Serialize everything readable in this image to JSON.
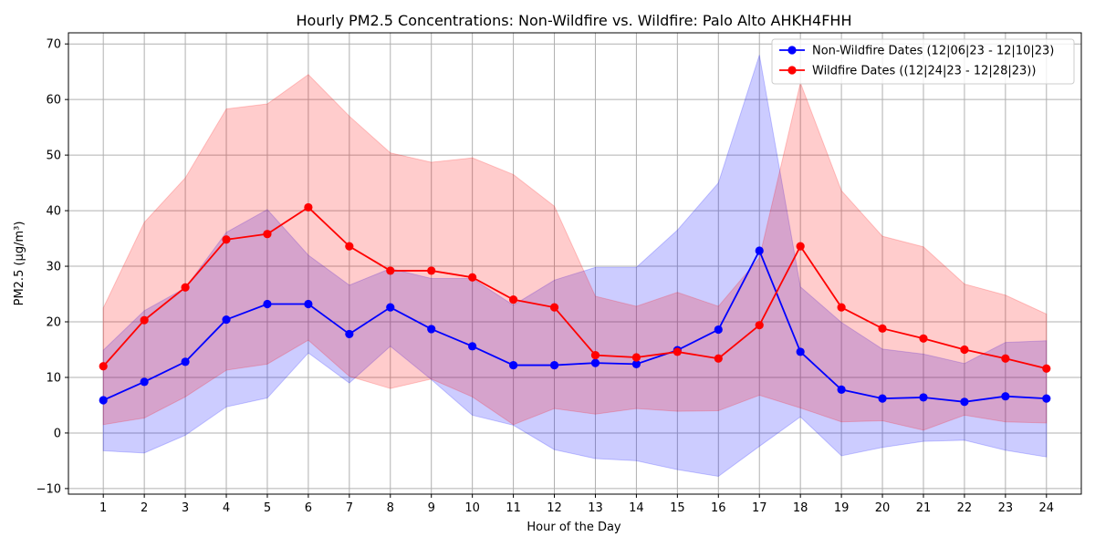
{
  "chart_data": {
    "type": "line",
    "title": "Hourly PM2.5 Concentrations: Non-Wildfire vs. Wildfire: Palo Alto AHKH4FHH",
    "xlabel": "Hour of the Day",
    "ylabel": "PM2.5 (µg/m³)",
    "x": [
      1,
      2,
      3,
      4,
      5,
      6,
      7,
      8,
      9,
      10,
      11,
      12,
      13,
      14,
      15,
      16,
      17,
      18,
      19,
      20,
      21,
      22,
      23,
      24
    ],
    "xlim": [
      0.15,
      24.85
    ],
    "ylim": [
      -11,
      72
    ],
    "yticks": [
      -10,
      0,
      10,
      20,
      30,
      40,
      50,
      60,
      70
    ],
    "grid": true,
    "legend_position": "top-right",
    "series": [
      {
        "name": "Non-Wildfire Dates (12|06|23 - 12|10|23)",
        "color": "#0000ff",
        "band_color": "#0000ff",
        "values": [
          5.9,
          9.2,
          12.8,
          20.4,
          23.2,
          23.2,
          17.8,
          22.6,
          18.7,
          15.6,
          12.2,
          12.2,
          12.6,
          12.4,
          14.9,
          18.6,
          32.8,
          14.6,
          7.8,
          6.2,
          6.4,
          5.6,
          6.6,
          6.2
        ],
        "upper": [
          14.9,
          22.0,
          26.1,
          36.1,
          40.2,
          32.0,
          26.6,
          29.6,
          27.8,
          27.8,
          23.0,
          27.5,
          29.8,
          29.8,
          36.5,
          45.0,
          68.0,
          26.3,
          19.9,
          15.1,
          14.2,
          12.5,
          16.3,
          16.6
        ],
        "lower": [
          -3.2,
          -3.6,
          -0.4,
          4.7,
          6.3,
          14.4,
          9.0,
          15.6,
          9.6,
          3.2,
          1.4,
          -3.0,
          -4.6,
          -5.0,
          -6.6,
          -7.8,
          -2.4,
          2.9,
          -4.1,
          -2.6,
          -1.5,
          -1.3,
          -3.1,
          -4.3
        ]
      },
      {
        "name": "Wildfire Dates ((12|24|23 - 12|28|23))",
        "color": "#ff0000",
        "band_color": "#ff0000",
        "values": [
          12.0,
          20.3,
          26.2,
          34.8,
          35.8,
          40.6,
          33.6,
          29.2,
          29.2,
          28.0,
          24.0,
          22.6,
          14.0,
          13.6,
          14.6,
          13.4,
          19.4,
          33.6,
          22.6,
          18.8,
          17.0,
          15.0,
          13.4,
          11.6
        ],
        "upper": [
          22.5,
          37.9,
          45.9,
          58.3,
          59.2,
          64.5,
          57.0,
          50.4,
          48.7,
          49.5,
          46.5,
          40.8,
          24.6,
          22.8,
          25.3,
          22.8,
          31.5,
          63.0,
          43.6,
          35.4,
          33.5,
          26.8,
          24.8,
          21.4
        ],
        "lower": [
          1.5,
          2.7,
          6.5,
          11.3,
          12.4,
          16.7,
          10.2,
          8.0,
          9.7,
          6.5,
          1.5,
          4.4,
          3.4,
          4.4,
          3.9,
          4.0,
          6.8,
          4.5,
          2.0,
          2.2,
          0.5,
          3.2,
          2.0,
          1.8
        ]
      }
    ]
  }
}
